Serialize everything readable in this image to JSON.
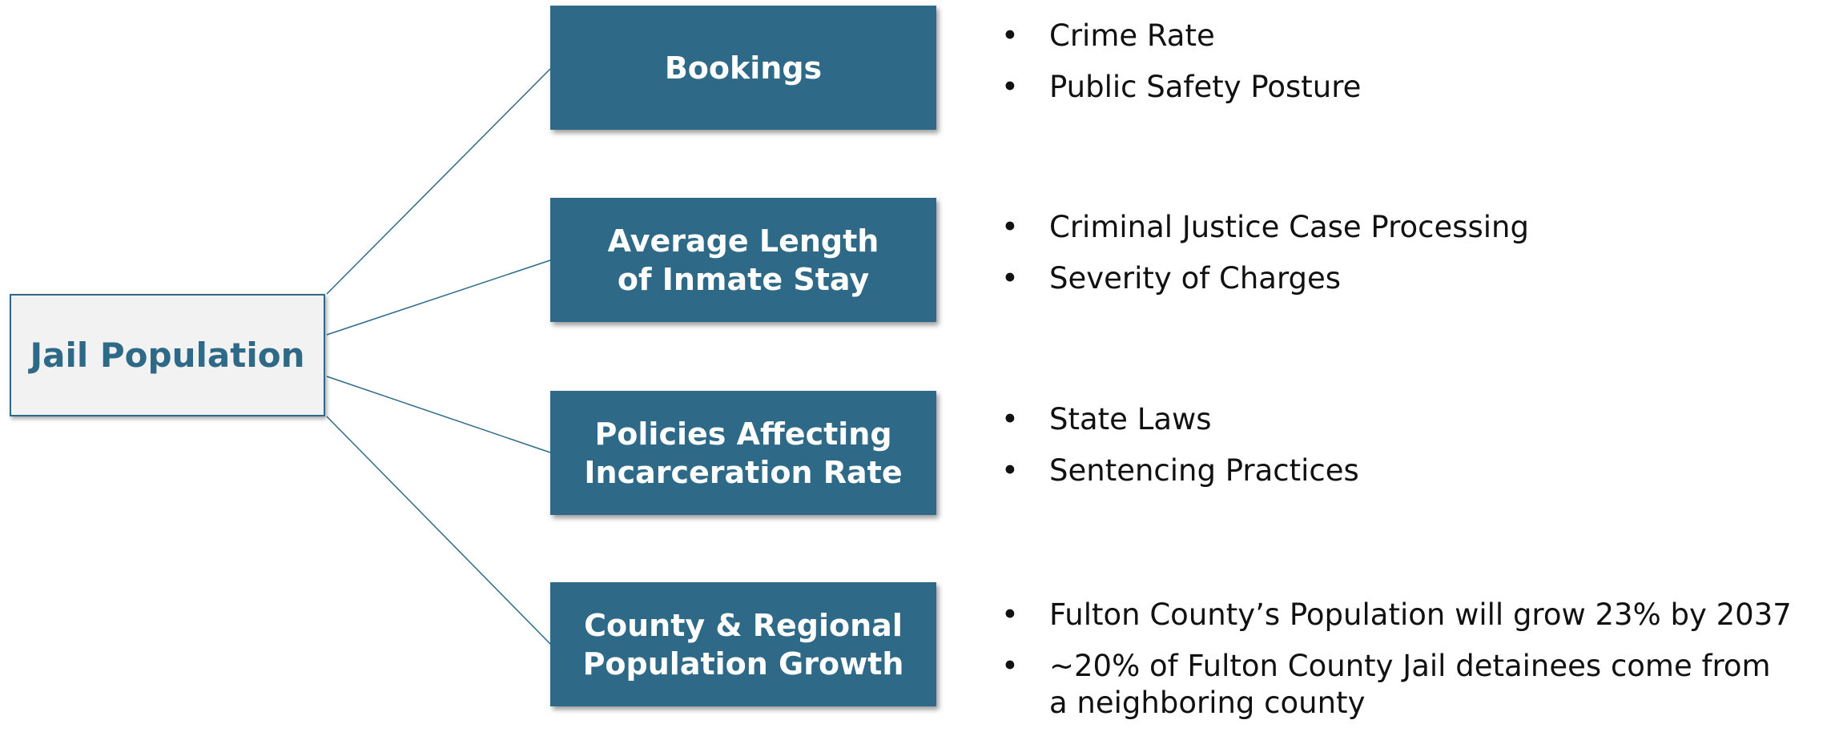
{
  "root": "Jail Population",
  "nodes": [
    {
      "label": [
        "Bookings"
      ],
      "items": [
        "Crime Rate",
        "Public Safety Posture"
      ]
    },
    {
      "label": [
        "Average Length",
        "of Inmate Stay"
      ],
      "items": [
        "Criminal Justice Case Processing",
        "Severity of Charges"
      ]
    },
    {
      "label": [
        "Policies Affecting",
        "Incarceration Rate"
      ],
      "items": [
        "State Laws",
        "Sentencing Practices"
      ]
    },
    {
      "label": [
        "County & Regional",
        "Population Growth"
      ],
      "items": [
        "Fulton County’s Population will grow 23% by 2037",
        "~20% of Fulton County Jail detainees come from a neighboring county"
      ]
    }
  ]
}
